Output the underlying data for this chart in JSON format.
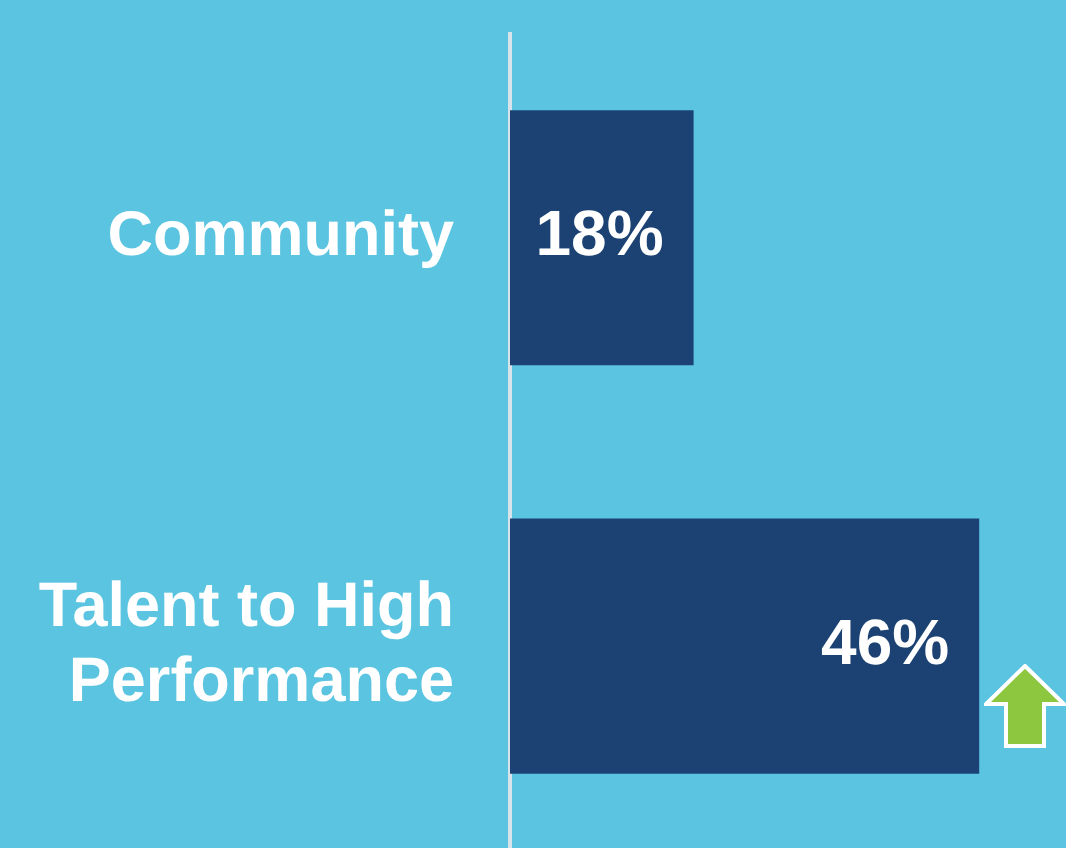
{
  "chart_data": {
    "type": "bar",
    "orientation": "horizontal",
    "categories": [
      "Community",
      "Talent to High Performance"
    ],
    "values": [
      18,
      46
    ],
    "color": "#1b4273",
    "tick_labels": "y",
    "legend": false,
    "data_labels": true,
    "value_labels": [
      "18%",
      "46%"
    ]
  }
}
